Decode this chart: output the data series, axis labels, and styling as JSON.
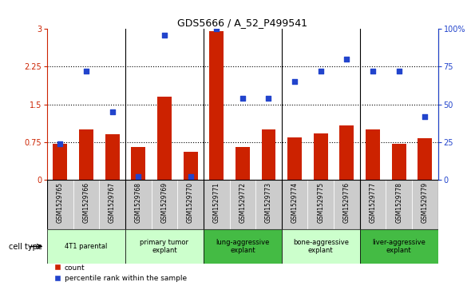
{
  "title": "GDS5666 / A_52_P499541",
  "samples": [
    "GSM1529765",
    "GSM1529766",
    "GSM1529767",
    "GSM1529768",
    "GSM1529769",
    "GSM1529770",
    "GSM1529771",
    "GSM1529772",
    "GSM1529773",
    "GSM1529774",
    "GSM1529775",
    "GSM1529776",
    "GSM1529777",
    "GSM1529778",
    "GSM1529779"
  ],
  "counts": [
    0.72,
    1.0,
    0.9,
    0.65,
    1.65,
    0.55,
    2.95,
    0.65,
    1.0,
    0.85,
    0.92,
    1.08,
    1.0,
    0.72,
    0.83
  ],
  "percentiles_pct": [
    24,
    72,
    45,
    2,
    96,
    2,
    100,
    54,
    54,
    65,
    72,
    80,
    72,
    72,
    42
  ],
  "cell_types": [
    {
      "label": "4T1 parental",
      "start": 0,
      "end": 3,
      "color": "#ccffcc"
    },
    {
      "label": "primary tumor\nexplant",
      "start": 3,
      "end": 6,
      "color": "#ccffcc"
    },
    {
      "label": "lung-aggressive\nexplant",
      "start": 6,
      "end": 9,
      "color": "#44bb44"
    },
    {
      "label": "bone-aggressive\nexplant",
      "start": 9,
      "end": 12,
      "color": "#ccffcc"
    },
    {
      "label": "liver-aggressive\nexplant",
      "start": 12,
      "end": 15,
      "color": "#44bb44"
    }
  ],
  "bar_color": "#cc2200",
  "dot_color": "#2244cc",
  "yticks_left": [
    0,
    0.75,
    1.5,
    2.25,
    3.0
  ],
  "yticks_right": [
    0,
    25,
    50,
    75,
    100
  ],
  "ylim": [
    0,
    3.0
  ],
  "legend_count": "count",
  "legend_pct": "percentile rank within the sample",
  "group_boundaries": [
    3,
    6,
    9,
    12
  ],
  "gray_bg": "#cccccc",
  "white_bg": "#ffffff"
}
